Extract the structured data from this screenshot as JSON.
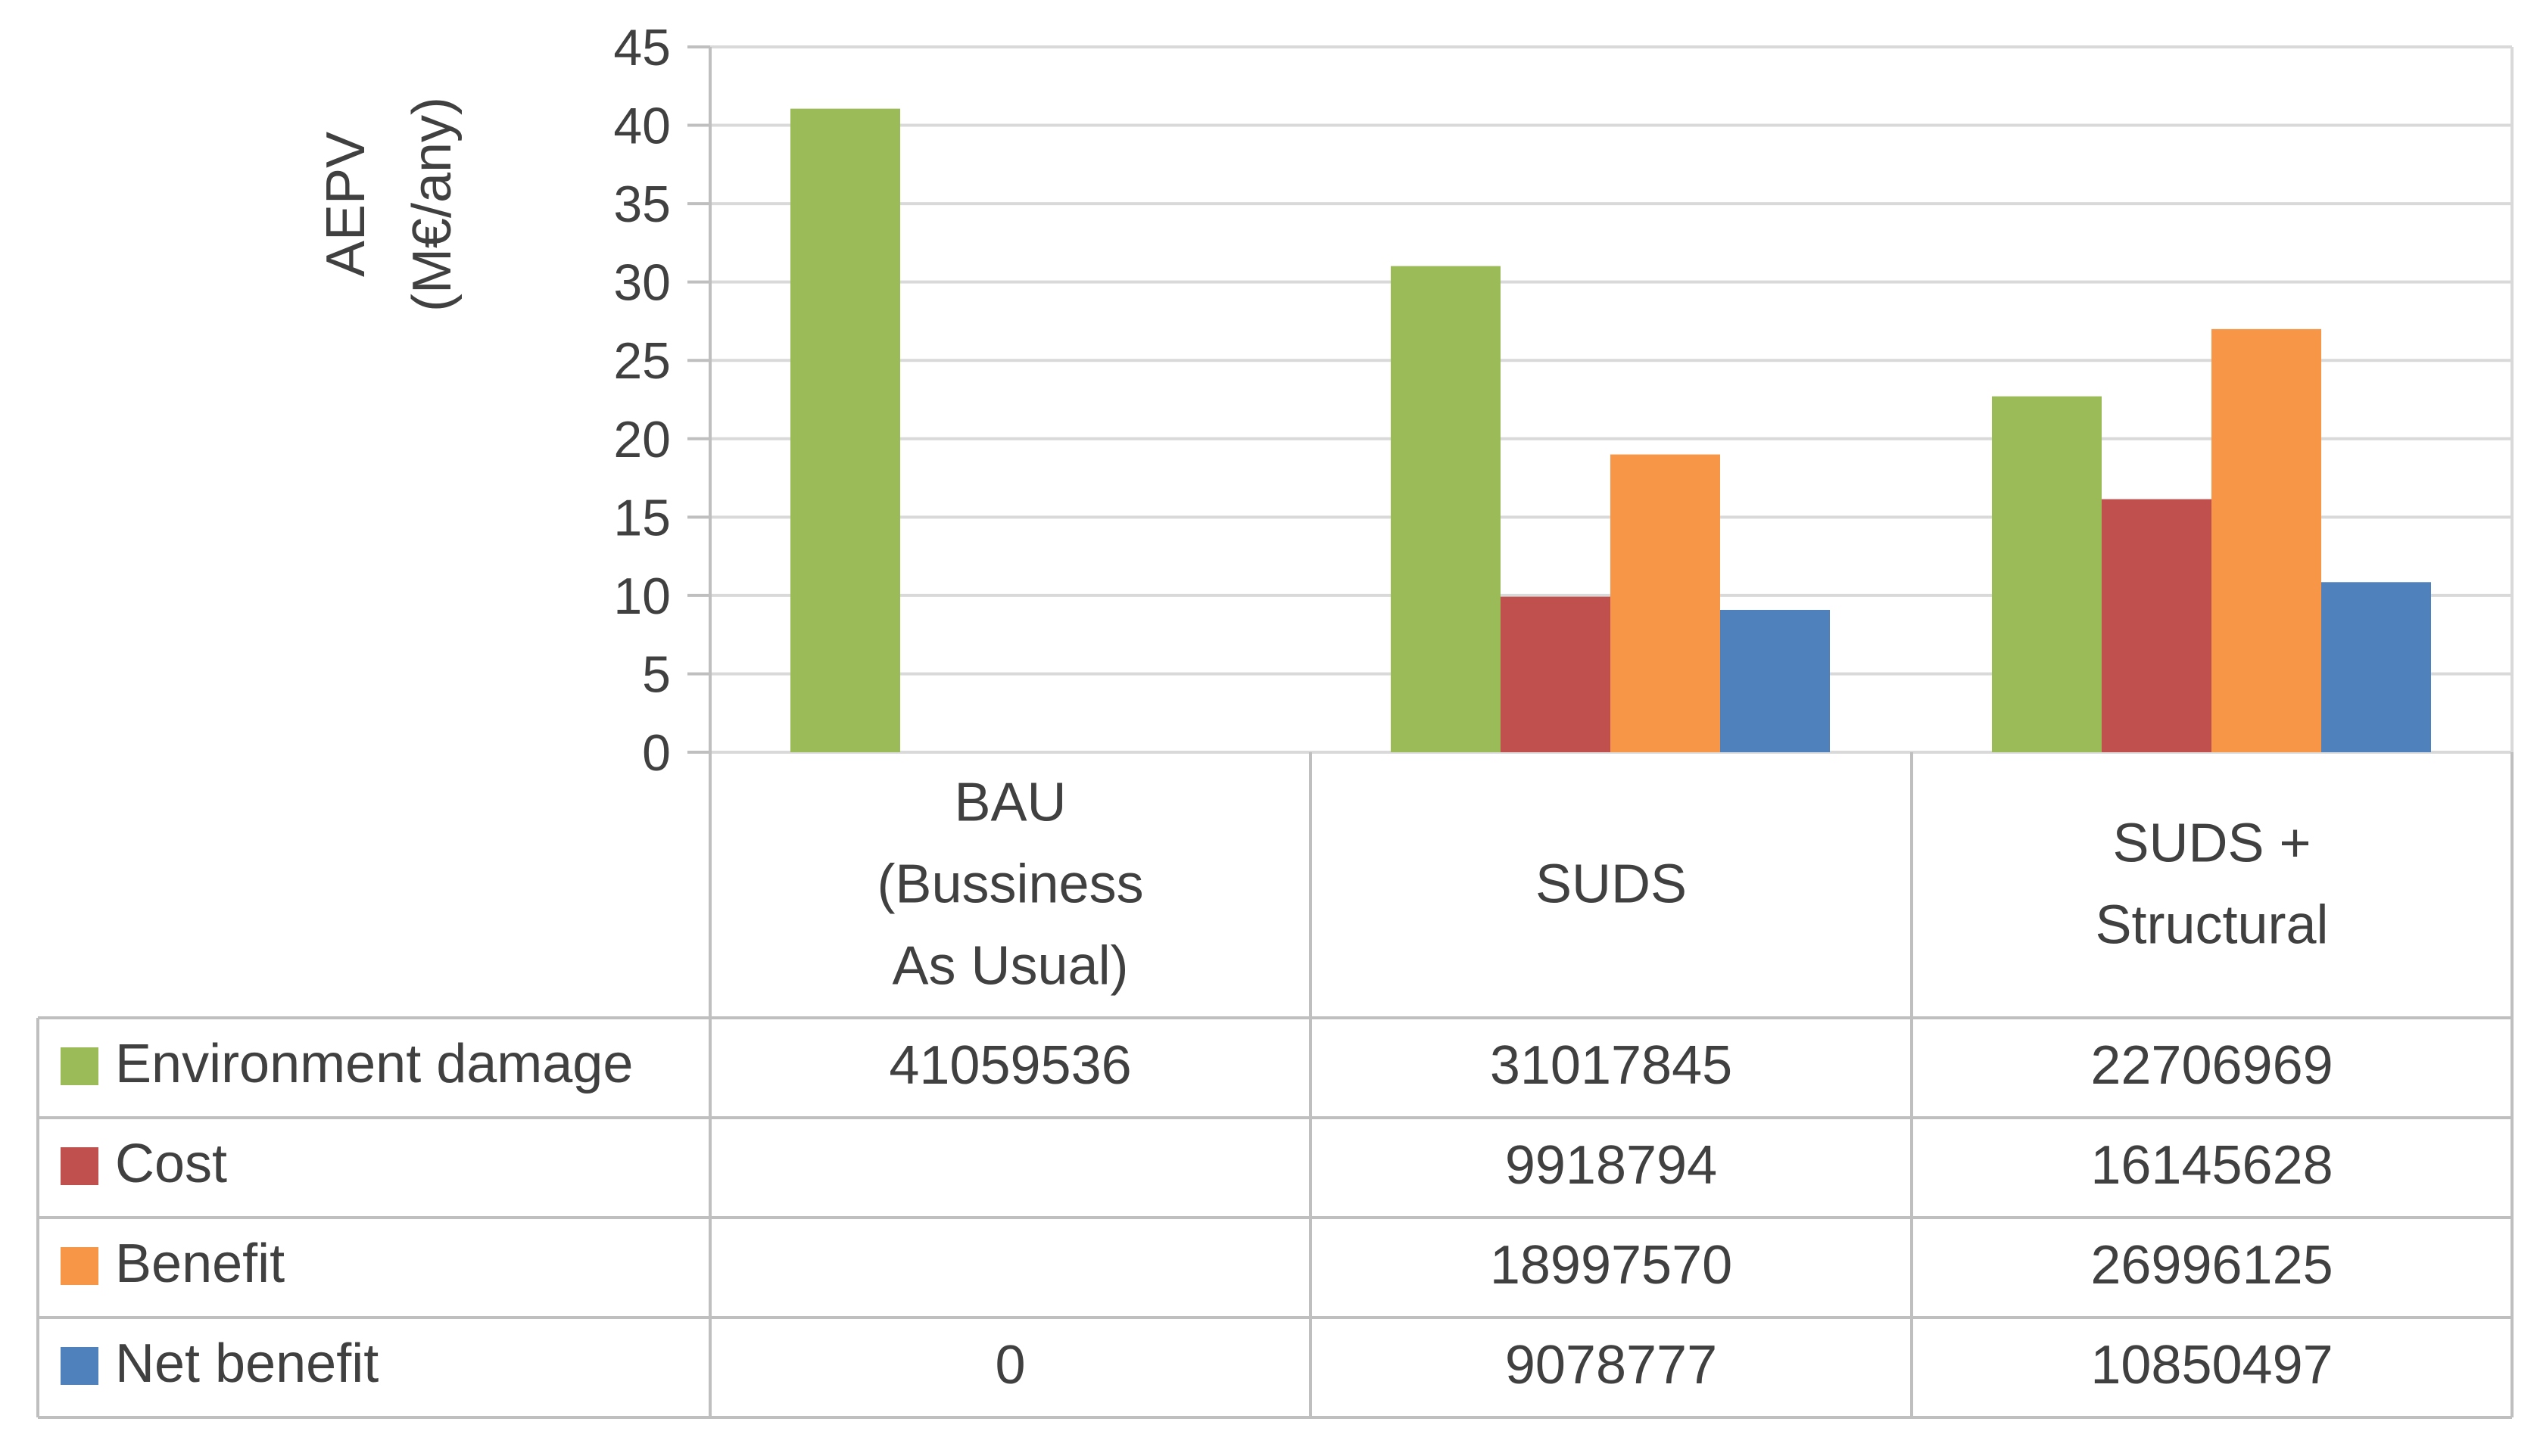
{
  "chart_data": {
    "type": "bar",
    "ylabel_lines": [
      "AEPV",
      "(M€/any)"
    ],
    "ylim": [
      0,
      45
    ],
    "yticks": [
      0,
      5,
      10,
      15,
      20,
      25,
      30,
      35,
      40,
      45
    ],
    "grid": true,
    "legend_placement": "data-table-left",
    "categories": [
      [
        "BAU",
        "(Bussiness",
        "As Usual)"
      ],
      [
        "SUDS"
      ],
      [
        "SUDS +",
        "Structural"
      ]
    ],
    "series": [
      {
        "name": "Environment damage",
        "color": "#9BBB59",
        "values": [
          41.059536,
          31.017845,
          22.706969
        ],
        "table": [
          "41059536",
          "31017845",
          "22706969"
        ]
      },
      {
        "name": "Cost",
        "color": "#C0504D",
        "values": [
          null,
          9.918794,
          16.145628
        ],
        "table": [
          "",
          "9918794",
          "16145628"
        ]
      },
      {
        "name": "Benefit",
        "color": "#F79646",
        "values": [
          null,
          18.99757,
          26.996125
        ],
        "table": [
          "",
          "18997570",
          "26996125"
        ]
      },
      {
        "name": "Net benefit",
        "color": "#4F81BD",
        "values": [
          0,
          9.078777,
          10.850497
        ],
        "table": [
          "0",
          "9078777",
          "10850497"
        ]
      }
    ]
  }
}
